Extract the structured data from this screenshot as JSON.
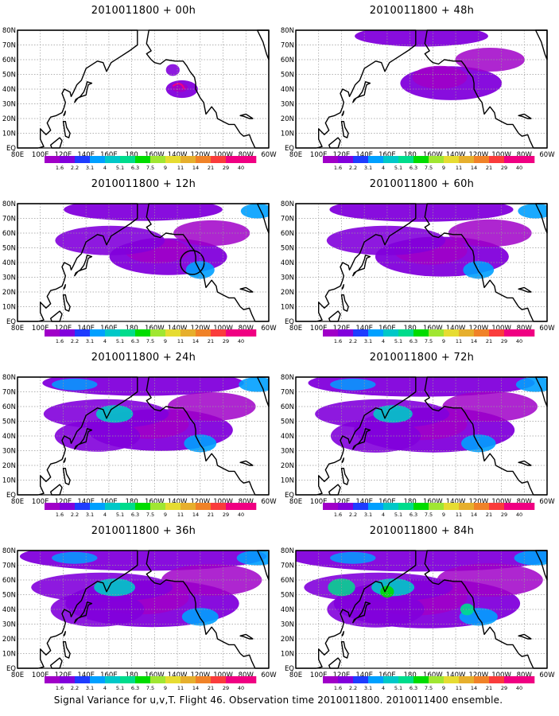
{
  "caption": "Signal Variance for u,v,T. Flight 46. Observation time 2010011800. 2010011400 ensemble.",
  "chart_data": [
    {
      "type": "heatmap",
      "title": "2010011800 + 00h",
      "lead_hours": 0
    },
    {
      "type": "heatmap",
      "title": "2010011800 + 48h",
      "lead_hours": 48
    },
    {
      "type": "heatmap",
      "title": "2010011800 + 12h",
      "lead_hours": 12
    },
    {
      "type": "heatmap",
      "title": "2010011800 + 60h",
      "lead_hours": 60
    },
    {
      "type": "heatmap",
      "title": "2010011800 + 24h",
      "lead_hours": 24
    },
    {
      "type": "heatmap",
      "title": "2010011800 + 72h",
      "lead_hours": 72
    },
    {
      "type": "heatmap",
      "title": "2010011800 + 36h",
      "lead_hours": 36
    },
    {
      "type": "heatmap",
      "title": "2010011800 + 84h",
      "lead_hours": 84
    }
  ],
  "x_tick_labels": [
    "80E",
    "100E",
    "120E",
    "140E",
    "160E",
    "180",
    "160W",
    "140W",
    "120W",
    "100W",
    "80W",
    "60W"
  ],
  "y_tick_labels": [
    "EQ",
    "10N",
    "20N",
    "30N",
    "40N",
    "50N",
    "60N",
    "70N",
    "80N"
  ],
  "colorbar": {
    "labels": [
      "1.6",
      "2.2",
      "3.1",
      "4",
      "5.1",
      "6.3",
      "7.5",
      "9",
      "11",
      "14",
      "21",
      "29",
      "40"
    ],
    "colors": [
      "#a000c8",
      "#8200dc",
      "#1e3cff",
      "#00a0ff",
      "#00c8c8",
      "#00dc8c",
      "#00dc00",
      "#a0e632",
      "#e6dc32",
      "#e6af2d",
      "#f08228",
      "#fa3c3c",
      "#f00082"
    ]
  }
}
